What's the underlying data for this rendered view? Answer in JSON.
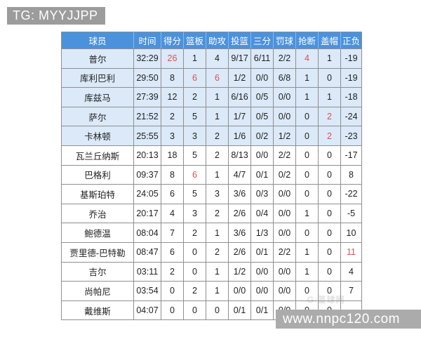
{
  "page": {
    "tg_label": "TG: MYYJJPP",
    "url_watermark": "www.nnpc120.com",
    "faint_overlay": "G:篮球网"
  },
  "colors": {
    "header_blue": "#4b92dc",
    "starter_row_blue": "#dbe9f8",
    "highlight_red": "#d9534f",
    "grid_gray": "#8f8f8f",
    "badge_gray": "#9c9c9c",
    "urlbar_gray": "#ababab"
  },
  "table": {
    "columns": [
      "球员",
      "时间",
      "得分",
      "篮板",
      "助攻",
      "投篮",
      "三分",
      "罚球",
      "抢断",
      "盖帽",
      "正负"
    ],
    "rows": [
      {
        "name": "普尔",
        "time": "32:29",
        "values": [
          "26",
          "1",
          "4",
          "9/17",
          "6/11",
          "2/2",
          "4",
          "1",
          "-19"
        ],
        "red": [
          0,
          6
        ],
        "starter": true
      },
      {
        "name": "库利巴利",
        "time": "29:50",
        "values": [
          "8",
          "6",
          "6",
          "1/2",
          "0/0",
          "6/8",
          "1",
          "0",
          "-19"
        ],
        "red": [
          1,
          2
        ],
        "starter": true
      },
      {
        "name": "库兹马",
        "time": "27:39",
        "values": [
          "12",
          "2",
          "1",
          "6/16",
          "0/5",
          "0/0",
          "1",
          "1",
          "-18"
        ],
        "red": [],
        "starter": true
      },
      {
        "name": "萨尔",
        "time": "21:52",
        "values": [
          "2",
          "5",
          "1",
          "1/7",
          "0/5",
          "0/0",
          "0",
          "2",
          "-24"
        ],
        "red": [
          7
        ],
        "starter": true
      },
      {
        "name": "卡林顿",
        "time": "25:55",
        "values": [
          "3",
          "3",
          "2",
          "1/6",
          "0/2",
          "1/2",
          "0",
          "2",
          "-23"
        ],
        "red": [
          7
        ],
        "starter": true
      },
      {
        "name": "瓦兰丘纳斯",
        "time": "20:13",
        "values": [
          "18",
          "5",
          "2",
          "8/13",
          "0/0",
          "2/2",
          "0",
          "0",
          "-17"
        ],
        "red": [],
        "starter": false
      },
      {
        "name": "巴格利",
        "time": "09:37",
        "values": [
          "8",
          "6",
          "1",
          "4/7",
          "0/1",
          "0/2",
          "0",
          "0",
          "8"
        ],
        "red": [
          1
        ],
        "starter": false
      },
      {
        "name": "基斯珀特",
        "time": "24:05",
        "values": [
          "6",
          "5",
          "3",
          "3/6",
          "0/3",
          "0/0",
          "0",
          "0",
          "-22"
        ],
        "red": [],
        "starter": false
      },
      {
        "name": "乔治",
        "time": "20:17",
        "values": [
          "4",
          "3",
          "2",
          "2/6",
          "0/4",
          "0/0",
          "1",
          "0",
          "-5"
        ],
        "red": [],
        "starter": false
      },
      {
        "name": "鲍德温",
        "time": "08:04",
        "values": [
          "7",
          "2",
          "1",
          "3/6",
          "1/3",
          "0/0",
          "0",
          "0",
          "10"
        ],
        "red": [],
        "starter": false
      },
      {
        "name": "贾里德-巴特勒",
        "time": "08:47",
        "values": [
          "6",
          "0",
          "2",
          "2/6",
          "0/1",
          "2/2",
          "1",
          "0",
          "11"
        ],
        "red": [
          8
        ],
        "starter": false
      },
      {
        "name": "吉尔",
        "time": "03:11",
        "values": [
          "2",
          "0",
          "1",
          "1/2",
          "0/0",
          "0/0",
          "1",
          "0",
          "4"
        ],
        "red": [],
        "starter": false
      },
      {
        "name": "尚帕尼",
        "time": "03:54",
        "values": [
          "0",
          "2",
          "1",
          "0/0",
          "0/0",
          "0/0",
          "0",
          "0",
          "7"
        ],
        "red": [],
        "starter": false
      },
      {
        "name": "戴维斯",
        "time": "04:07",
        "values": [
          "0",
          "0",
          "0",
          "0/1",
          "0/1",
          "0/0",
          "0",
          "0",
          ""
        ],
        "red": [],
        "starter": false
      }
    ]
  }
}
